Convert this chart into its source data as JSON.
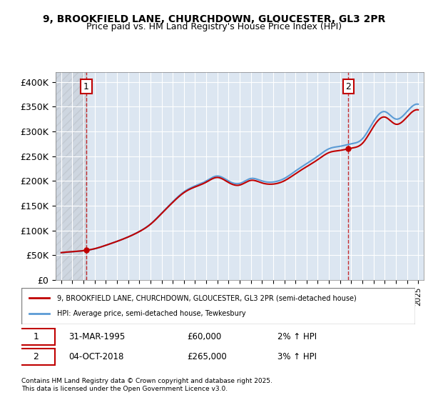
{
  "title_line1": "9, BROOKFIELD LANE, CHURCHDOWN, GLOUCESTER, GL3 2PR",
  "title_line2": "Price paid vs. HM Land Registry's House Price Index (HPI)",
  "ylabel": "",
  "xlabel": "",
  "ylim": [
    0,
    420000
  ],
  "yticks": [
    0,
    50000,
    100000,
    150000,
    200000,
    250000,
    300000,
    350000,
    400000
  ],
  "ytick_labels": [
    "£0",
    "£50K",
    "£100K",
    "£150K",
    "£200K",
    "£250K",
    "£300K",
    "£350K",
    "£400K"
  ],
  "hpi_color": "#5b9bd5",
  "price_color": "#c00000",
  "background_color": "#dce6f1",
  "legend_label_price": "9, BROOKFIELD LANE, CHURCHDOWN, GLOUCESTER, GL3 2PR (semi-detached house)",
  "legend_label_hpi": "HPI: Average price, semi-detached house, Tewkesbury",
  "annotation1_label": "1",
  "annotation1_date": "31-MAR-1995",
  "annotation1_price": "£60,000",
  "annotation1_hpi": "2% ↑ HPI",
  "annotation2_label": "2",
  "annotation2_date": "04-OCT-2018",
  "annotation2_price": "£265,000",
  "annotation2_hpi": "3% ↑ HPI",
  "footer": "Contains HM Land Registry data © Crown copyright and database right 2025.\nThis data is licensed under the Open Government Licence v3.0.",
  "hpi_years": [
    1993,
    1994,
    1995,
    1996,
    1997,
    1998,
    1999,
    2000,
    2001,
    2002,
    2003,
    2004,
    2005,
    2006,
    2007,
    2008,
    2009,
    2010,
    2011,
    2012,
    2013,
    2014,
    2015,
    2016,
    2017,
    2018,
    2019,
    2020,
    2021,
    2022,
    2023,
    2024,
    2025
  ],
  "hpi_values": [
    55000,
    57000,
    59000,
    63000,
    70000,
    78000,
    87000,
    98000,
    113000,
    135000,
    158000,
    178000,
    190000,
    200000,
    210000,
    200000,
    195000,
    205000,
    200000,
    198000,
    205000,
    220000,
    235000,
    250000,
    265000,
    270000,
    275000,
    285000,
    320000,
    340000,
    325000,
    340000,
    355000
  ],
  "sale_years": [
    1995.25,
    2018.75
  ],
  "sale_prices": [
    60000,
    265000
  ],
  "vline1_year": 1995.25,
  "vline2_year": 2018.75,
  "xtick_years": [
    1993,
    1994,
    1995,
    1996,
    1997,
    1998,
    1999,
    2000,
    2001,
    2002,
    2003,
    2004,
    2005,
    2006,
    2007,
    2008,
    2009,
    2010,
    2011,
    2012,
    2013,
    2014,
    2015,
    2016,
    2017,
    2018,
    2019,
    2020,
    2021,
    2022,
    2023,
    2024,
    2025
  ]
}
